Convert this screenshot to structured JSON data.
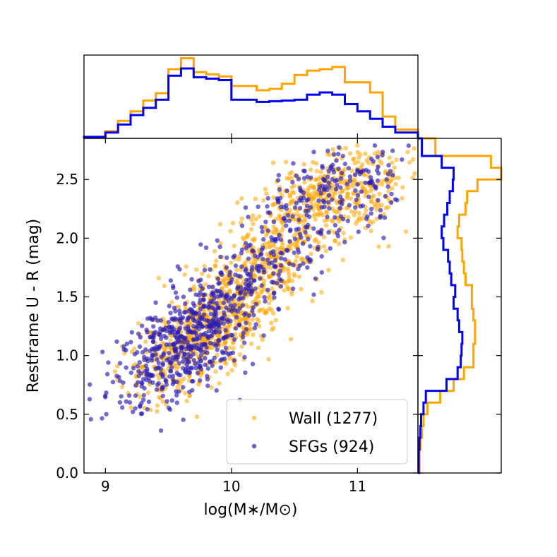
{
  "colors": {
    "wall": "#FFA500",
    "sfg": "#0000EE",
    "sfg_point": "#2B1CB0",
    "axes": "#000000"
  },
  "chart_data": {
    "type": "scatter",
    "xlabel": "log(M∗/M⊙)",
    "ylabel": "Restframe U - R (mag)",
    "xlim": [
      8.83,
      11.48
    ],
    "ylim": [
      0.0,
      2.85
    ],
    "x_ticks": [
      9,
      10,
      11
    ],
    "x_tick_labels": [
      "9",
      "10",
      "11"
    ],
    "y_ticks": [
      0.0,
      0.5,
      1.0,
      1.5,
      2.0,
      2.5
    ],
    "y_tick_labels": [
      "0.0",
      "0.5",
      "1.0",
      "1.5",
      "2.0",
      "2.5"
    ],
    "legend": {
      "location": "lower right",
      "entries": [
        {
          "key": "wall",
          "label": "Wall (1277)"
        },
        {
          "key": "sfg",
          "label": "SFGs (924)"
        }
      ]
    },
    "series": [
      {
        "key": "wall",
        "name": "Wall (1277)",
        "count": 1277,
        "components": [
          {
            "weight": 0.4,
            "mx": 9.75,
            "my": 1.18,
            "sx": 0.26,
            "sy": 0.22,
            "slope": 0.6
          },
          {
            "weight": 0.3,
            "mx": 10.25,
            "my": 1.75,
            "sx": 0.28,
            "sy": 0.26,
            "slope": 0.75
          },
          {
            "weight": 0.3,
            "mx": 10.9,
            "my": 2.38,
            "sx": 0.3,
            "sy": 0.2,
            "slope": 0.3
          }
        ]
      },
      {
        "key": "sfg",
        "name": "SFGs (924)",
        "count": 924,
        "components": [
          {
            "weight": 0.5,
            "mx": 9.62,
            "my": 1.1,
            "sx": 0.26,
            "sy": 0.22,
            "slope": 0.55
          },
          {
            "weight": 0.28,
            "mx": 10.15,
            "my": 1.65,
            "sx": 0.3,
            "sy": 0.25,
            "slope": 0.8
          },
          {
            "weight": 0.22,
            "mx": 10.85,
            "my": 2.38,
            "sx": 0.28,
            "sy": 0.2,
            "slope": 0.35
          }
        ]
      }
    ],
    "marginal_x": {
      "bin_edges": [
        8.83,
        9.0,
        9.1,
        9.2,
        9.3,
        9.4,
        9.5,
        9.6,
        9.7,
        9.8,
        9.9,
        10.0,
        10.1,
        10.2,
        10.3,
        10.4,
        10.5,
        10.6,
        10.7,
        10.8,
        10.9,
        11.0,
        11.1,
        11.2,
        11.3,
        11.48
      ],
      "wall": [
        2,
        10,
        24,
        37,
        52,
        62,
        95,
        110,
        91,
        88,
        85,
        72,
        72,
        66,
        68,
        75,
        87,
        93,
        95,
        98,
        77,
        77,
        63,
        30,
        12
      ],
      "sfg": [
        2,
        8,
        19,
        32,
        42,
        53,
        86,
        96,
        84,
        82,
        80,
        53,
        53,
        50,
        51,
        52,
        53,
        60,
        63,
        60,
        47,
        37,
        27,
        16,
        8
      ]
    },
    "marginal_y": {
      "bin_edges": [
        0.0,
        0.1,
        0.2,
        0.3,
        0.4,
        0.5,
        0.6,
        0.7,
        0.8,
        0.9,
        1.0,
        1.1,
        1.2,
        1.3,
        1.4,
        1.5,
        1.6,
        1.7,
        1.8,
        1.9,
        2.0,
        2.1,
        2.2,
        2.3,
        2.4,
        2.5,
        2.6,
        2.7,
        2.85
      ],
      "wall": [
        2,
        2,
        3,
        5,
        7,
        12,
        28,
        45,
        58,
        70,
        70,
        72,
        72,
        70,
        68,
        68,
        60,
        58,
        56,
        55,
        50,
        52,
        60,
        62,
        75,
        105,
        92,
        22
      ],
      "sfg": [
        1,
        1,
        2,
        3,
        4,
        7,
        10,
        36,
        50,
        54,
        55,
        56,
        52,
        50,
        45,
        47,
        42,
        40,
        38,
        32,
        30,
        33,
        37,
        40,
        44,
        45,
        30,
        5
      ]
    }
  }
}
